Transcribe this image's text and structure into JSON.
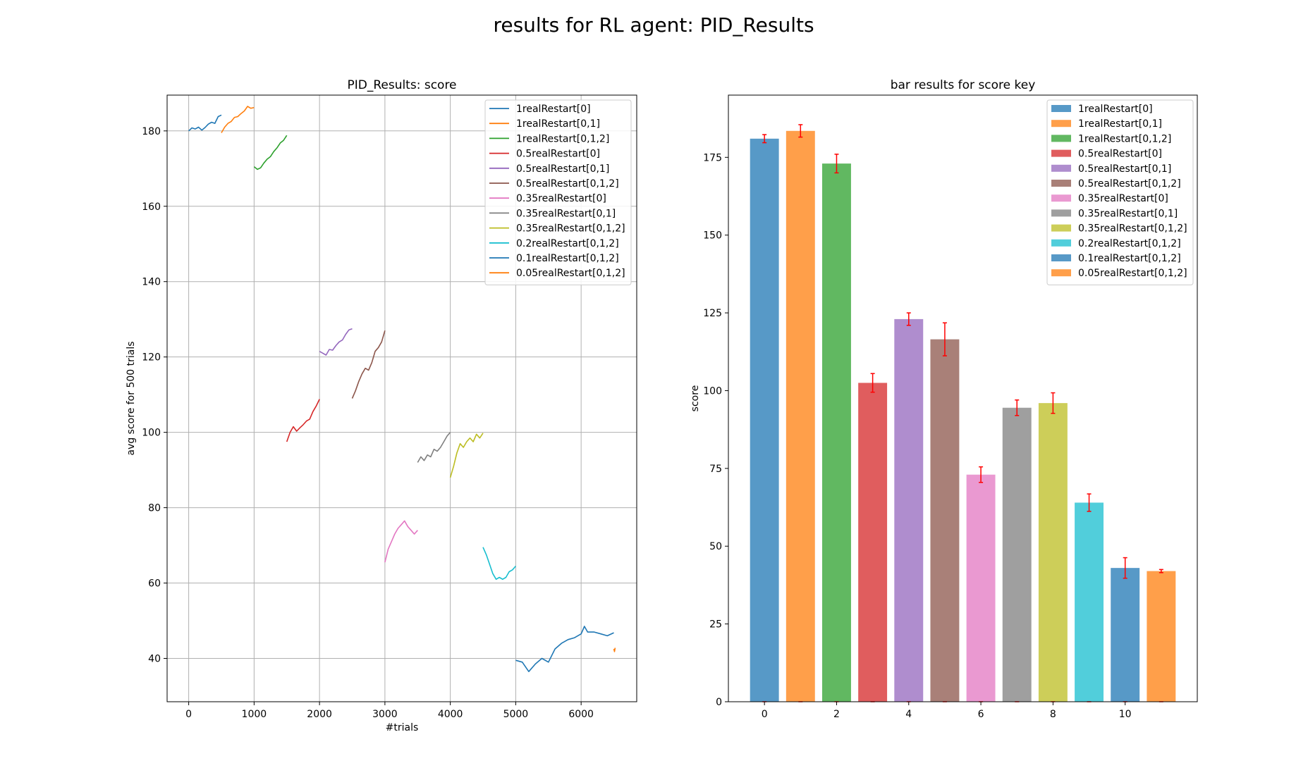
{
  "figure": {
    "suptitle": "results for RL agent: PID_Results"
  },
  "colors": {
    "tab10": [
      "#1f77b4",
      "#ff7f0e",
      "#2ca02c",
      "#d62728",
      "#9467bd",
      "#8c564b",
      "#e377c2",
      "#7f7f7f",
      "#bcbd22",
      "#17becf"
    ],
    "errorbar": "#ff0000"
  },
  "chart_data": [
    {
      "type": "line",
      "title": "PID_Results: score",
      "xlabel": "#trials",
      "ylabel": "avg score for 500 trials",
      "xlim": [
        -330,
        6850
      ],
      "ylim": [
        28.5,
        189.5
      ],
      "xticks": [
        0,
        1000,
        2000,
        3000,
        4000,
        5000,
        6000
      ],
      "yticks": [
        40,
        60,
        80,
        100,
        120,
        140,
        160,
        180
      ],
      "grid": true,
      "legend_position": "top-right",
      "series": [
        {
          "name": "1realRestart[0]",
          "color": "#1f77b4",
          "points": [
            [
              0,
              180
            ],
            [
              50,
              180.8
            ],
            [
              100,
              180.5
            ],
            [
              150,
              181
            ],
            [
              200,
              180.2
            ],
            [
              250,
              180.9
            ],
            [
              300,
              181.8
            ],
            [
              350,
              182.3
            ],
            [
              400,
              182
            ],
            [
              450,
              183.8
            ],
            [
              500,
              184.2
            ]
          ]
        },
        {
          "name": "1realRestart[0,1]",
          "color": "#ff7f0e",
          "points": [
            [
              500,
              179.5
            ],
            [
              550,
              181
            ],
            [
              600,
              182
            ],
            [
              650,
              182.5
            ],
            [
              700,
              183.6
            ],
            [
              750,
              183.8
            ],
            [
              800,
              184.6
            ],
            [
              850,
              185.3
            ],
            [
              900,
              186.5
            ],
            [
              950,
              186
            ],
            [
              1000,
              186.2
            ]
          ]
        },
        {
          "name": "1realRestart[0,1,2]",
          "color": "#2ca02c",
          "points": [
            [
              1000,
              170.5
            ],
            [
              1050,
              169.8
            ],
            [
              1100,
              170.2
            ],
            [
              1150,
              171.5
            ],
            [
              1200,
              172.5
            ],
            [
              1250,
              173.2
            ],
            [
              1300,
              174.5
            ],
            [
              1350,
              175.5
            ],
            [
              1400,
              176.8
            ],
            [
              1450,
              177.5
            ],
            [
              1500,
              178.8
            ]
          ]
        },
        {
          "name": "0.5realRestart[0]",
          "color": "#d62728",
          "points": [
            [
              1500,
              97.5
            ],
            [
              1550,
              100
            ],
            [
              1600,
              101.5
            ],
            [
              1650,
              100.3
            ],
            [
              1700,
              101.2
            ],
            [
              1750,
              102
            ],
            [
              1800,
              103
            ],
            [
              1850,
              103.5
            ],
            [
              1900,
              105.5
            ],
            [
              1950,
              107
            ],
            [
              2000,
              108.8
            ]
          ]
        },
        {
          "name": "0.5realRestart[0,1]",
          "color": "#9467bd",
          "points": [
            [
              2000,
              121.5
            ],
            [
              2050,
              121
            ],
            [
              2100,
              120.5
            ],
            [
              2150,
              122
            ],
            [
              2200,
              121.8
            ],
            [
              2250,
              123
            ],
            [
              2300,
              124
            ],
            [
              2350,
              124.5
            ],
            [
              2400,
              126
            ],
            [
              2450,
              127.2
            ],
            [
              2500,
              127.5
            ]
          ]
        },
        {
          "name": "0.5realRestart[0,1,2]",
          "color": "#8c564b",
          "points": [
            [
              2500,
              109
            ],
            [
              2550,
              111
            ],
            [
              2600,
              113.5
            ],
            [
              2650,
              115.5
            ],
            [
              2700,
              117
            ],
            [
              2750,
              116.5
            ],
            [
              2800,
              118.5
            ],
            [
              2850,
              121.5
            ],
            [
              2900,
              122.5
            ],
            [
              2950,
              124
            ],
            [
              3000,
              127
            ]
          ]
        },
        {
          "name": "0.35realRestart[0]",
          "color": "#e377c2",
          "points": [
            [
              3000,
              65.5
            ],
            [
              3050,
              69
            ],
            [
              3100,
              71
            ],
            [
              3150,
              73
            ],
            [
              3200,
              74.5
            ],
            [
              3250,
              75.5
            ],
            [
              3300,
              76.5
            ],
            [
              3350,
              75
            ],
            [
              3400,
              74
            ],
            [
              3450,
              73
            ],
            [
              3500,
              74
            ]
          ]
        },
        {
          "name": "0.35realRestart[0,1]",
          "color": "#7f7f7f",
          "points": [
            [
              3500,
              92
            ],
            [
              3550,
              93.5
            ],
            [
              3600,
              92.5
            ],
            [
              3650,
              94
            ],
            [
              3700,
              93.5
            ],
            [
              3750,
              95.5
            ],
            [
              3800,
              95
            ],
            [
              3850,
              96
            ],
            [
              3900,
              97.5
            ],
            [
              3950,
              99
            ],
            [
              4000,
              100
            ]
          ]
        },
        {
          "name": "0.35realRestart[0,1,2]",
          "color": "#bcbd22",
          "points": [
            [
              4000,
              88
            ],
            [
              4050,
              91
            ],
            [
              4100,
              94.5
            ],
            [
              4150,
              97
            ],
            [
              4200,
              96
            ],
            [
              4250,
              97.5
            ],
            [
              4300,
              98.5
            ],
            [
              4350,
              97.5
            ],
            [
              4400,
              99.5
            ],
            [
              4450,
              98.5
            ],
            [
              4500,
              99.8
            ]
          ]
        },
        {
          "name": "0.2realRestart[0,1,2]",
          "color": "#17becf",
          "points": [
            [
              4500,
              69.5
            ],
            [
              4550,
              67.5
            ],
            [
              4600,
              65
            ],
            [
              4650,
              62.5
            ],
            [
              4700,
              61
            ],
            [
              4750,
              61.5
            ],
            [
              4800,
              61
            ],
            [
              4850,
              61.5
            ],
            [
              4900,
              63
            ],
            [
              4950,
              63.5
            ],
            [
              5000,
              64.5
            ]
          ]
        },
        {
          "name": "0.1realRestart[0,1,2]",
          "color": "#1f77b4",
          "points": [
            [
              5000,
              39.5
            ],
            [
              5100,
              39
            ],
            [
              5200,
              36.5
            ],
            [
              5300,
              38.5
            ],
            [
              5400,
              40
            ],
            [
              5500,
              39
            ],
            [
              5600,
              42.5
            ],
            [
              5700,
              44
            ],
            [
              5800,
              45
            ],
            [
              5900,
              45.5
            ],
            [
              6000,
              46.5
            ],
            [
              6050,
              48.5
            ],
            [
              6100,
              47
            ],
            [
              6200,
              47
            ],
            [
              6300,
              46.5
            ],
            [
              6400,
              46
            ],
            [
              6500,
              46.8
            ]
          ]
        },
        {
          "name": "0.05realRestart[0,1,2]",
          "color": "#ff7f0e",
          "points": [
            [
              6500,
              42.5
            ],
            [
              6510,
              41.8
            ],
            [
              6520,
              42.8
            ]
          ]
        }
      ]
    },
    {
      "type": "bar",
      "title": "bar results for score key",
      "xlabel": "",
      "ylabel": "score",
      "xlim": [
        -1.0,
        12.0
      ],
      "ylim": [
        0,
        195
      ],
      "xticks": [
        0,
        2,
        4,
        6,
        8,
        10
      ],
      "yticks": [
        0,
        25,
        50,
        75,
        100,
        125,
        150,
        175
      ],
      "grid": false,
      "legend_position": "top-right",
      "categories": [
        "1realRestart[0]",
        "1realRestart[0,1]",
        "1realRestart[0,1,2]",
        "0.5realRestart[0]",
        "0.5realRestart[0,1]",
        "0.5realRestart[0,1,2]",
        "0.35realRestart[0]",
        "0.35realRestart[0,1]",
        "0.35realRestart[0,1,2]",
        "0.2realRestart[0,1,2]",
        "0.1realRestart[0,1,2]",
        "0.05realRestart[0,1,2]"
      ],
      "positions": [
        0,
        1,
        2,
        3,
        4,
        5,
        6,
        7,
        8,
        9,
        10,
        11
      ],
      "values": [
        181,
        183.5,
        173,
        102.5,
        123,
        116.5,
        73,
        94.5,
        96,
        64,
        43,
        42
      ],
      "errors": [
        1.3,
        2,
        3,
        3,
        2,
        5.3,
        2.5,
        2.5,
        3.3,
        2.8,
        3.3,
        0.5
      ],
      "colors": [
        "#1f77b4",
        "#ff7f0e",
        "#2ca02c",
        "#d62728",
        "#9467bd",
        "#8c564b",
        "#e377c2",
        "#7f7f7f",
        "#bcbd22",
        "#17becf",
        "#1f77b4",
        "#ff7f0e"
      ],
      "alpha": 0.75
    }
  ]
}
